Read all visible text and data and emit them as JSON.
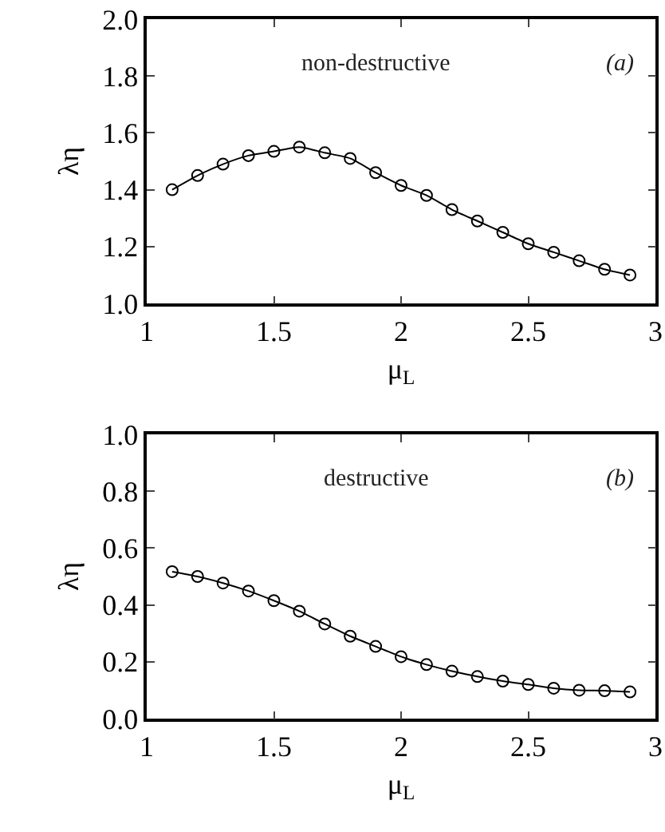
{
  "chart_data": [
    {
      "type": "line",
      "xlabel": "μ$_{L}$",
      "ylabel": "λη",
      "annotations": [
        "non-destructive",
        "(a)"
      ],
      "x": [
        1.1,
        1.2,
        1.3,
        1.4,
        1.5,
        1.6,
        1.7,
        1.8,
        1.9,
        2.0,
        2.1,
        2.2,
        2.3,
        2.4,
        2.5,
        2.6,
        2.7,
        2.8,
        2.9
      ],
      "series": [
        {
          "color": "#000000",
          "values": [
            1.4,
            1.45,
            1.49,
            1.52,
            1.535,
            1.55,
            1.53,
            1.51,
            1.46,
            1.415,
            1.38,
            1.33,
            1.29,
            1.25,
            1.21,
            1.18,
            1.15,
            1.12,
            1.1
          ]
        }
      ],
      "xlim": [
        1,
        3
      ],
      "xticks": [
        1,
        1.5,
        2,
        2.5,
        3
      ],
      "ylim": [
        1.0,
        2.0
      ],
      "yticks": [
        {
          "value": 1.0,
          "label": "1.0"
        },
        1.2,
        1.4,
        1.6,
        1.8,
        {
          "value": 2.0,
          "label": "2.0"
        }
      ],
      "marker": "circle",
      "line_style": "solid",
      "grid": false,
      "legend": false
    },
    {
      "type": "line",
      "xlabel": "μ$_{L}$",
      "ylabel": "λη",
      "annotations": [
        "destructive",
        "(b)"
      ],
      "x": [
        1.1,
        1.2,
        1.3,
        1.4,
        1.5,
        1.6,
        1.7,
        1.8,
        1.9,
        2.0,
        2.1,
        2.2,
        2.3,
        2.4,
        2.5,
        2.6,
        2.7,
        2.8,
        2.9
      ],
      "series": [
        {
          "color": "#000000",
          "values": [
            0.517,
            0.5,
            0.477,
            0.449,
            0.415,
            0.378,
            0.333,
            0.29,
            0.254,
            0.218,
            0.19,
            0.167,
            0.148,
            0.132,
            0.12,
            0.107,
            0.1,
            0.098,
            0.094
          ]
        }
      ],
      "xlim": [
        1,
        3
      ],
      "xticks": [
        1,
        1.5,
        2,
        2.5,
        3
      ],
      "ylim": [
        0.0,
        1.0
      ],
      "yticks": [
        {
          "value": 0.0,
          "label": "0.0"
        },
        0.2,
        0.4,
        0.6,
        0.8,
        {
          "value": 1.0,
          "label": "1.0"
        }
      ],
      "marker": "circle",
      "line_style": "solid",
      "grid": false,
      "legend": false
    }
  ]
}
